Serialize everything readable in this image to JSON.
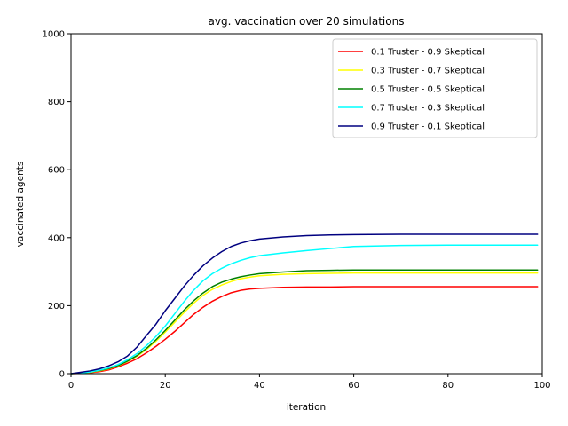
{
  "chart_data": {
    "type": "line",
    "title": "avg. vaccination over 20 simulations",
    "xlabel": "iteration",
    "ylabel": "vaccinated agents",
    "xlim": [
      0,
      100
    ],
    "ylim": [
      0,
      1000
    ],
    "xticks": [
      0,
      20,
      40,
      60,
      80,
      100
    ],
    "yticks": [
      0,
      200,
      400,
      600,
      800,
      1000
    ],
    "grid": false,
    "legend_position": "top-right",
    "x": [
      0,
      2,
      4,
      6,
      8,
      10,
      12,
      14,
      16,
      18,
      20,
      22,
      24,
      26,
      28,
      30,
      32,
      34,
      36,
      38,
      40,
      45,
      50,
      55,
      60,
      70,
      80,
      90,
      99
    ],
    "series": [
      {
        "name": "0.1 Truster - 0.9 Skeptical",
        "color": "#ff0000",
        "values": [
          0,
          1,
          3,
          6,
          11,
          20,
          31,
          44,
          61,
          80,
          101,
          124,
          149,
          174,
          195,
          213,
          227,
          238,
          245,
          249,
          251,
          254,
          255,
          255,
          256,
          256,
          256,
          256,
          256
        ]
      },
      {
        "name": "0.3 Truster - 0.7 Skeptical",
        "color": "#ffff00",
        "values": [
          0,
          2,
          4,
          8,
          14,
          23,
          36,
          51,
          71,
          95,
          122,
          151,
          180,
          207,
          230,
          248,
          261,
          271,
          279,
          284,
          288,
          292,
          294,
          295,
          296,
          296,
          296,
          296,
          296
        ]
      },
      {
        "name": "0.5 Truster - 0.5 Skeptical",
        "color": "#008000",
        "values": [
          0,
          2,
          5,
          9,
          15,
          24,
          37,
          53,
          74,
          99,
          127,
          157,
          187,
          214,
          237,
          256,
          269,
          278,
          285,
          290,
          294,
          299,
          303,
          304,
          305,
          305,
          305,
          305,
          305
        ]
      },
      {
        "name": "0.7 Truster - 0.3 Skeptical",
        "color": "#00ffff",
        "values": [
          0,
          2,
          5,
          10,
          17,
          27,
          41,
          59,
          82,
          109,
          140,
          176,
          212,
          245,
          273,
          294,
          310,
          323,
          333,
          341,
          347,
          355,
          362,
          368,
          374,
          377,
          378,
          378,
          378
        ]
      },
      {
        "name": "0.9 Truster - 0.1 Skeptical",
        "color": "#000080",
        "values": [
          0,
          4,
          8,
          14,
          23,
          35,
          52,
          78,
          112,
          145,
          185,
          221,
          257,
          289,
          317,
          340,
          359,
          374,
          384,
          391,
          396,
          402,
          406,
          408,
          409,
          410,
          410,
          410,
          410
        ]
      }
    ]
  }
}
